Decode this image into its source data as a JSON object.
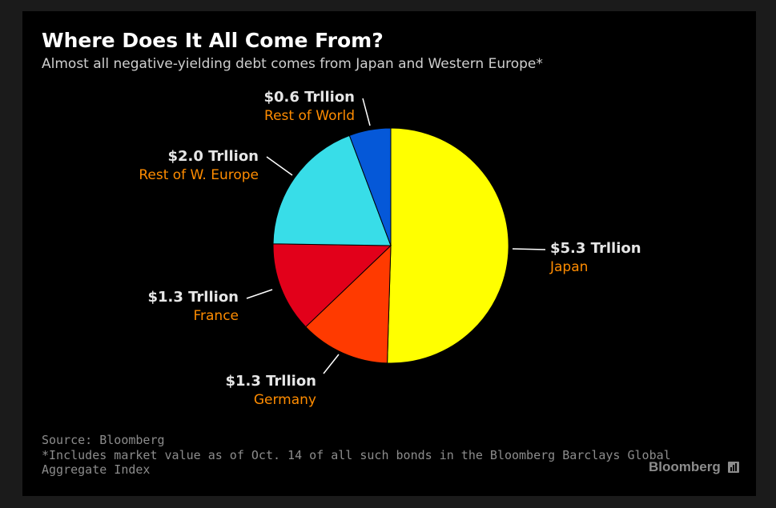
{
  "title": "Where Does It All Come From?",
  "subtitle": "Almost all negative-yielding debt comes from Japan and Western Europe*",
  "chart_data": {
    "type": "pie",
    "title": "Where Does It All Come From?",
    "unit": "Trillion USD",
    "start_angle_deg": 0,
    "direction": "clockwise",
    "slices": [
      {
        "name": "Japan",
        "value": 5.3,
        "value_label": "$5.3 Trllion",
        "color": "#ffff00"
      },
      {
        "name": "Germany",
        "value": 1.3,
        "value_label": "$1.3 Trllion",
        "color": "#ff3a00"
      },
      {
        "name": "France",
        "value": 1.3,
        "value_label": "$1.3 Trllion",
        "color": "#e2001a"
      },
      {
        "name": "Rest of W. Europe",
        "value": 2.0,
        "value_label": "$2.0 Trllion",
        "color": "#38dde8"
      },
      {
        "name": "Rest of World",
        "value": 0.6,
        "value_label": "$0.6 Trllion",
        "color": "#0558d8"
      }
    ],
    "label_color": "#e6e6e6",
    "category_color": "#ff8c00"
  },
  "footer": {
    "source": "Source: Bloomberg",
    "note_line1": "*Includes market value as of Oct. 14 of all such bonds in the Bloomberg Barclays Global",
    "note_line2": "Aggregate Index"
  },
  "brand": {
    "name": "Bloomberg",
    "icon": "bloomberg-chart-icon"
  }
}
